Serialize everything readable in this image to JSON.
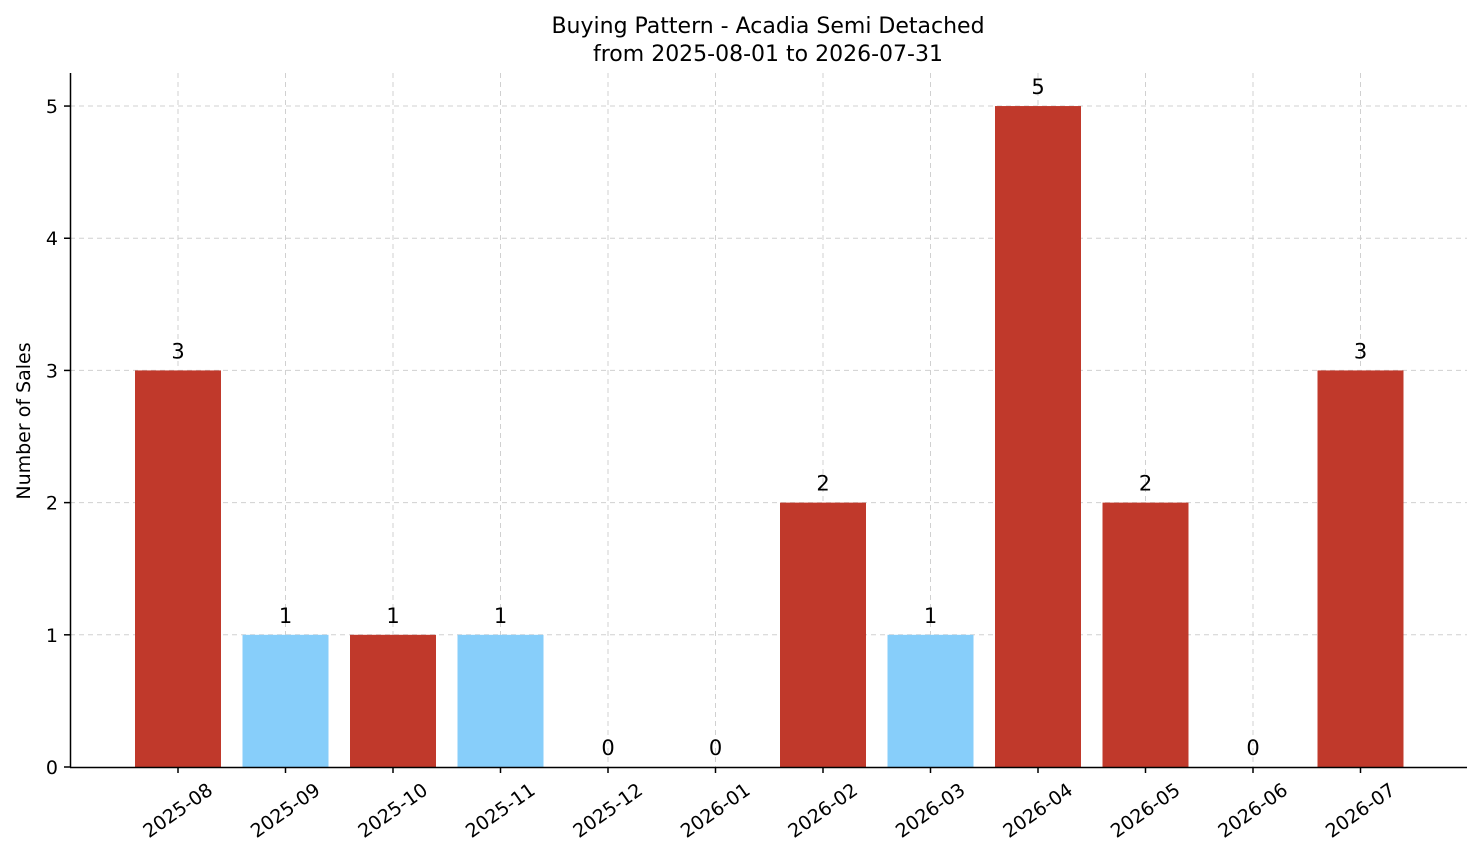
{
  "chart_data": {
    "type": "bar",
    "title": "Buying Pattern - Acadia Semi Detached",
    "subtitle": "from 2025-08-01 to 2026-07-31",
    "xlabel": "",
    "ylabel": "Number of Sales",
    "categories": [
      "2025-08",
      "2025-09",
      "2025-10",
      "2025-11",
      "2025-12",
      "2026-01",
      "2026-02",
      "2026-03",
      "2026-04",
      "2026-05",
      "2026-06",
      "2026-07"
    ],
    "values": [
      3,
      1,
      1,
      1,
      0,
      0,
      2,
      1,
      5,
      2,
      0,
      3
    ],
    "bar_colors": [
      "#c0392b",
      "#87cefa",
      "#c0392b",
      "#87cefa",
      "#c0392b",
      "#87cefa",
      "#c0392b",
      "#87cefa",
      "#c0392b",
      "#c0392b",
      "#87cefa",
      "#c0392b"
    ],
    "ylim": [
      0,
      5.25
    ],
    "yticks": [
      0,
      1,
      2,
      3,
      4,
      5
    ],
    "grid": true,
    "legend": "none"
  }
}
